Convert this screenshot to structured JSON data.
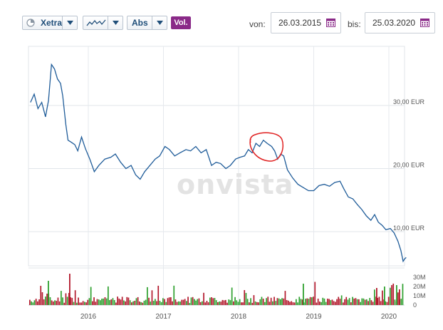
{
  "toolbar": {
    "exchange_label": "Xetra",
    "scale_label": "Abs",
    "volume_label": "Vol.",
    "from_label": "von:",
    "from_value": "26.03.2015",
    "to_label": "bis:",
    "to_value": "25.03.2020"
  },
  "watermark": "onvista",
  "colors": {
    "line": "#1f5c99",
    "vol_up": "#2ea02e",
    "vol_down": "#b2182b",
    "accent": "#8a2a88",
    "annotation": "#e02020"
  },
  "chart_data": {
    "type": "line",
    "price_axis": {
      "ticks": [
        {
          "value": 30,
          "label": "30,00 EUR"
        },
        {
          "value": 20,
          "label": "20,00 EUR"
        },
        {
          "value": 10,
          "label": "10,00 EUR"
        }
      ]
    },
    "volume_axis": {
      "ticks": [
        {
          "value": 30,
          "label": "30M"
        },
        {
          "value": 20,
          "label": "20M"
        },
        {
          "value": 10,
          "label": "10M"
        },
        {
          "value": 0,
          "label": "0"
        }
      ]
    },
    "x_axis": {
      "labels": [
        "2016",
        "2017",
        "2018",
        "2019",
        "2020"
      ]
    },
    "series": [
      {
        "values": [
          [
            2015.23,
            30.5
          ],
          [
            2015.28,
            31.8
          ],
          [
            2015.33,
            29.5
          ],
          [
            2015.38,
            30.5
          ],
          [
            2015.43,
            28.2
          ],
          [
            2015.47,
            30.8
          ],
          [
            2015.51,
            36.5
          ],
          [
            2015.55,
            35.8
          ],
          [
            2015.59,
            34.2
          ],
          [
            2015.63,
            33.5
          ],
          [
            2015.66,
            31.5
          ],
          [
            2015.7,
            27.0
          ],
          [
            2015.73,
            24.5
          ],
          [
            2015.77,
            24.2
          ],
          [
            2015.82,
            23.8
          ],
          [
            2015.86,
            22.8
          ],
          [
            2015.91,
            25.0
          ],
          [
            2015.96,
            23.2
          ],
          [
            2016.02,
            21.5
          ],
          [
            2016.08,
            19.5
          ],
          [
            2016.14,
            20.5
          ],
          [
            2016.22,
            21.5
          ],
          [
            2016.3,
            21.8
          ],
          [
            2016.36,
            22.3
          ],
          [
            2016.43,
            21.0
          ],
          [
            2016.5,
            20.0
          ],
          [
            2016.57,
            20.5
          ],
          [
            2016.63,
            19.0
          ],
          [
            2016.69,
            18.3
          ],
          [
            2016.75,
            19.5
          ],
          [
            2016.82,
            20.5
          ],
          [
            2016.89,
            21.5
          ],
          [
            2016.95,
            22.0
          ],
          [
            2017.02,
            23.5
          ],
          [
            2017.08,
            23.0
          ],
          [
            2017.15,
            22.0
          ],
          [
            2017.22,
            22.5
          ],
          [
            2017.3,
            23.0
          ],
          [
            2017.36,
            22.8
          ],
          [
            2017.43,
            23.5
          ],
          [
            2017.5,
            22.5
          ],
          [
            2017.57,
            23.0
          ],
          [
            2017.64,
            20.5
          ],
          [
            2017.7,
            21.0
          ],
          [
            2017.76,
            20.8
          ],
          [
            2017.83,
            20.0
          ],
          [
            2017.89,
            20.5
          ],
          [
            2017.96,
            21.5
          ],
          [
            2018.02,
            21.8
          ],
          [
            2018.08,
            22.0
          ],
          [
            2018.13,
            23.0
          ],
          [
            2018.18,
            22.5
          ],
          [
            2018.23,
            24.0
          ],
          [
            2018.28,
            23.5
          ],
          [
            2018.33,
            24.5
          ],
          [
            2018.38,
            24.0
          ],
          [
            2018.44,
            23.5
          ],
          [
            2018.48,
            22.8
          ],
          [
            2018.52,
            21.5
          ],
          [
            2018.56,
            22.3
          ],
          [
            2018.6,
            22.0
          ],
          [
            2018.65,
            19.8
          ],
          [
            2018.72,
            18.5
          ],
          [
            2018.79,
            17.5
          ],
          [
            2018.86,
            17.0
          ],
          [
            2018.93,
            16.5
          ],
          [
            2019.0,
            16.5
          ],
          [
            2019.07,
            17.3
          ],
          [
            2019.14,
            17.5
          ],
          [
            2019.21,
            17.2
          ],
          [
            2019.28,
            17.8
          ],
          [
            2019.35,
            18.0
          ],
          [
            2019.4,
            16.8
          ],
          [
            2019.46,
            15.5
          ],
          [
            2019.52,
            15.2
          ],
          [
            2019.58,
            14.3
          ],
          [
            2019.64,
            13.5
          ],
          [
            2019.7,
            12.5
          ],
          [
            2019.76,
            11.8
          ],
          [
            2019.81,
            12.7
          ],
          [
            2019.86,
            11.5
          ],
          [
            2019.91,
            11.0
          ],
          [
            2019.96,
            10.3
          ],
          [
            2020.02,
            10.5
          ],
          [
            2020.07,
            9.8
          ],
          [
            2020.12,
            8.5
          ],
          [
            2020.16,
            7.0
          ],
          [
            2020.19,
            5.3
          ],
          [
            2020.21,
            5.7
          ],
          [
            2020.23,
            5.9
          ]
        ]
      }
    ]
  }
}
